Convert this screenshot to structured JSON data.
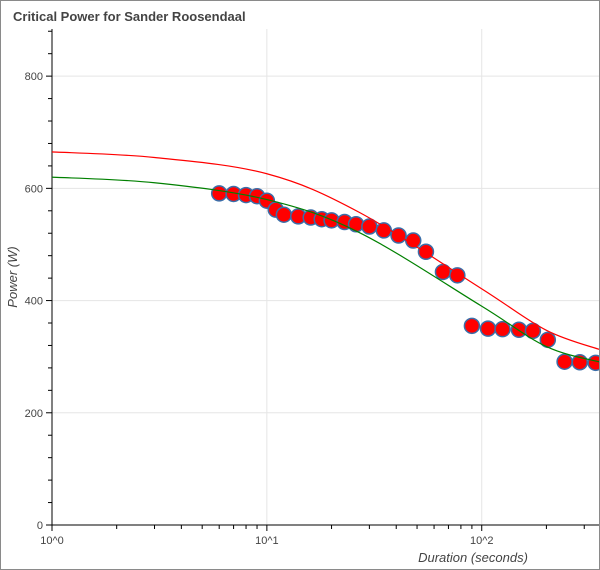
{
  "chart_data": {
    "type": "scatter",
    "title": "Critical Power for Sander Roosendaal",
    "xlabel": "Duration (seconds)",
    "ylabel": "Power (W)",
    "x_scale": "log",
    "xlim": [
      1,
      359
    ],
    "ylim": [
      0,
      884
    ],
    "x_ticks": [
      1,
      10,
      100
    ],
    "x_tick_labels": [
      "10^0",
      "10^1",
      "10^2"
    ],
    "y_ticks": [
      0,
      200,
      400,
      600,
      800
    ],
    "y_tick_labels": [
      "0",
      "200",
      "400",
      "600",
      "800"
    ],
    "grid": true,
    "points": {
      "x": [
        6,
        7,
        8,
        9,
        10,
        11,
        12,
        14,
        16,
        18,
        20,
        23,
        26,
        30,
        35,
        41,
        48,
        55,
        66,
        77,
        90,
        107,
        125,
        149,
        173,
        203,
        243,
        286,
        339
      ],
      "y": [
        591,
        590,
        588,
        586,
        578,
        562,
        553,
        550,
        548,
        545,
        543,
        540,
        536,
        532,
        525,
        516,
        507,
        487,
        451,
        445,
        355,
        350,
        349,
        348,
        346,
        330,
        291,
        290,
        289
      ],
      "fill": "#ff0000",
      "stroke": "#3b6ea8"
    },
    "series": [
      {
        "color": "#ff0000",
        "x": [
          1,
          3,
          10,
          27,
          99,
          200,
          359
        ],
        "y": [
          665,
          655,
          626,
          557,
          422,
          347,
          312
        ]
      },
      {
        "color": "#008000",
        "x": [
          1,
          3,
          10,
          27,
          99,
          200,
          359
        ],
        "y": [
          620,
          610,
          580,
          521,
          391,
          318,
          290
        ]
      }
    ]
  }
}
